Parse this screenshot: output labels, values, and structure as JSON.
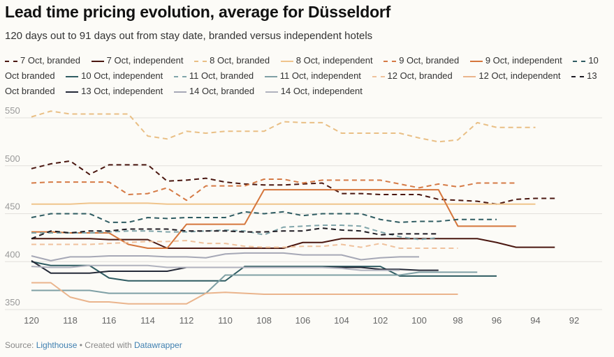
{
  "title": "Lead time pricing evolution, average for Düsseldorf",
  "subtitle": "120 days out to 91 days out from stay date, branded versus independent hotels",
  "footer": {
    "source_label": "Source:",
    "source_link": "Lighthouse",
    "sep": " • Created with ",
    "tool_link": "Datawrapper"
  },
  "chart_data": {
    "type": "line",
    "title": "Lead time pricing evolution, average for Düsseldorf",
    "xlabel": "",
    "ylabel": "",
    "xlim": [
      120,
      91
    ],
    "ylim": [
      340,
      560
    ],
    "x_ticks": [
      120,
      118,
      116,
      114,
      112,
      110,
      108,
      106,
      104,
      102,
      100,
      98,
      96,
      94,
      92
    ],
    "y_ticks": [
      350,
      400,
      450,
      500,
      550
    ],
    "grid": true,
    "legend": "top",
    "series": [
      {
        "name": "7 Oct, branded",
        "color": "#4a1710",
        "dashed": true,
        "start": 120,
        "values": [
          497,
          502,
          505,
          491,
          501,
          501,
          501,
          484,
          485,
          487,
          483,
          481,
          480,
          480,
          481,
          482,
          471,
          471,
          470,
          470,
          470,
          465,
          464,
          463,
          460,
          465,
          466,
          466
        ]
      },
      {
        "name": "7 Oct, independent",
        "color": "#4a1710",
        "dashed": false,
        "start": 120,
        "values": [
          424,
          424,
          424,
          424,
          423,
          423,
          423,
          414,
          414,
          414,
          414,
          414,
          414,
          414,
          420,
          420,
          424,
          424,
          424,
          424,
          424,
          424,
          424,
          424,
          420,
          415,
          415,
          415
        ]
      },
      {
        "name": "8 Oct, branded",
        "color": "#e9bf85",
        "dashed": true,
        "start": 120,
        "values": [
          551,
          557,
          554,
          554,
          554,
          554,
          531,
          528,
          536,
          534,
          536,
          536,
          536,
          546,
          545,
          545,
          534,
          534,
          534,
          534,
          529,
          525,
          527,
          545,
          540,
          540,
          540
        ]
      },
      {
        "name": "8 Oct, independent",
        "color": "#efc48c",
        "dashed": false,
        "start": 120,
        "values": [
          460,
          460,
          460,
          461,
          461,
          461,
          461,
          460,
          460,
          460,
          460,
          460,
          460,
          460,
          460,
          460,
          460,
          460,
          460,
          460,
          460,
          460,
          460,
          460,
          460,
          460,
          460
        ]
      },
      {
        "name": "9 Oct, branded",
        "color": "#d57a45",
        "dashed": true,
        "start": 120,
        "values": [
          482,
          483,
          483,
          483,
          483,
          470,
          471,
          477,
          464,
          479,
          479,
          479,
          486,
          486,
          482,
          485,
          485,
          485,
          485,
          481,
          477,
          481,
          478,
          482,
          482,
          482
        ]
      },
      {
        "name": "9 Oct, independent",
        "color": "#d5763c",
        "dashed": false,
        "start": 120,
        "values": [
          431,
          431,
          430,
          430,
          430,
          418,
          414,
          414,
          439,
          439,
          439,
          439,
          475,
          475,
          475,
          475,
          475,
          475,
          475,
          475,
          475,
          475,
          437,
          437,
          437,
          437
        ]
      },
      {
        "name": "10 Oct branded",
        "color": "#2f5c62",
        "dashed": true,
        "start": 120,
        "values": [
          446,
          450,
          450,
          450,
          441,
          441,
          446,
          445,
          446,
          446,
          446,
          452,
          450,
          452,
          448,
          450,
          450,
          450,
          444,
          441,
          442,
          442,
          444,
          444,
          444
        ]
      },
      {
        "name": "10 Oct, independent",
        "color": "#2f5c62",
        "dashed": false,
        "start": 120,
        "values": [
          400,
          396,
          396,
          396,
          383,
          380,
          380,
          380,
          380,
          380,
          380,
          395,
          395,
          395,
          395,
          395,
          395,
          395,
          395,
          385,
          385,
          385,
          385,
          385,
          385
        ]
      },
      {
        "name": "11 Oct, branded",
        "color": "#80a5aa",
        "dashed": true,
        "start": 120,
        "values": [
          430,
          430,
          430,
          430,
          431,
          432,
          432,
          431,
          431,
          432,
          433,
          432,
          428,
          436,
          437,
          438,
          438,
          437,
          431,
          426,
          423,
          425
        ]
      },
      {
        "name": "11 Oct, independent",
        "color": "#7fa0a5",
        "dashed": false,
        "start": 120,
        "values": [
          370,
          370,
          370,
          370,
          367,
          367,
          367,
          367,
          367,
          367,
          386,
          386,
          386,
          386,
          386,
          386,
          386,
          386,
          386,
          386,
          389,
          389,
          389,
          389
        ]
      },
      {
        "name": "12 Oct, branded",
        "color": "#efc19c",
        "dashed": true,
        "start": 120,
        "values": [
          418,
          418,
          418,
          418,
          419,
          420,
          421,
          421,
          422,
          419,
          419,
          416,
          415,
          415,
          416,
          416,
          418,
          415,
          419,
          414,
          414,
          414,
          414
        ]
      },
      {
        "name": "12 Oct, independent",
        "color": "#eab48c",
        "dashed": false,
        "start": 120,
        "values": [
          378,
          378,
          363,
          358,
          358,
          356,
          356,
          356,
          356,
          367,
          368,
          367,
          366,
          366,
          366,
          366,
          366,
          366,
          366,
          366,
          366,
          366,
          366
        ]
      },
      {
        "name": "13 Oct branded",
        "color": "#1e1b22",
        "dashed": true,
        "start": 120,
        "values": [
          424,
          432,
          430,
          432,
          432,
          434,
          434,
          434,
          432,
          432,
          432,
          431,
          431,
          432,
          432,
          435,
          433,
          432,
          428,
          429,
          429,
          429
        ]
      },
      {
        "name": "13 Oct, independent",
        "color": "#252a38",
        "dashed": false,
        "start": 120,
        "values": [
          401,
          388,
          388,
          388,
          390,
          390,
          390,
          390,
          394,
          394,
          394,
          394,
          394,
          394,
          394,
          394,
          394,
          394,
          392,
          392,
          391,
          391
        ]
      },
      {
        "name": "14 Oct, branded",
        "color": "#a6a8b6",
        "dashed": false,
        "start": 120,
        "values": [
          406,
          401,
          405,
          405,
          406,
          406,
          406,
          405,
          405,
          404,
          408,
          409,
          409,
          409,
          407,
          407,
          407,
          402,
          404,
          405,
          405
        ]
      },
      {
        "name": "14 Oct, independent",
        "color": "#b0b2be",
        "dashed": false,
        "start": 120,
        "values": [
          395,
          394,
          394,
          396,
          396,
          396,
          396,
          394,
          394,
          394,
          394,
          394,
          394,
          394,
          394,
          394,
          393,
          391,
          391,
          391
        ]
      }
    ]
  }
}
